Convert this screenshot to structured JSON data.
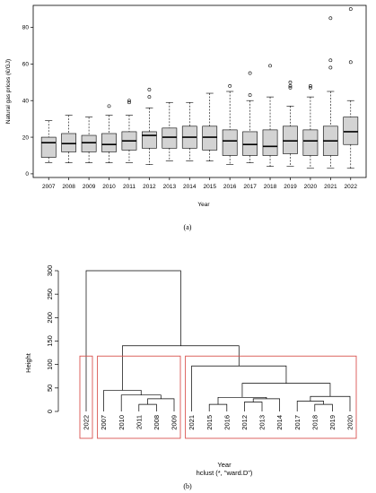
{
  "chart_data": [
    {
      "type": "boxplot",
      "panel_label": "(a)",
      "xlabel": "Year",
      "ylabel": "Natural gas prices (€/GJ)",
      "ylim": [
        -2,
        92
      ],
      "yticks": [
        0,
        20,
        40,
        60,
        80
      ],
      "grid": false,
      "categories": [
        "2007",
        "2008",
        "2009",
        "2010",
        "2011",
        "2012",
        "2013",
        "2014",
        "2015",
        "2016",
        "2017",
        "2018",
        "2019",
        "2020",
        "2021",
        "2022"
      ],
      "boxes": [
        {
          "year": "2007",
          "whisker_low": 6,
          "q1": 9,
          "median": 17,
          "q3": 20,
          "whisker_high": 29,
          "outliers": []
        },
        {
          "year": "2008",
          "whisker_low": 6,
          "q1": 12,
          "median": 16.5,
          "q3": 22,
          "whisker_high": 32,
          "outliers": []
        },
        {
          "year": "2009",
          "whisker_low": 6,
          "q1": 12,
          "median": 17,
          "q3": 21,
          "whisker_high": 31,
          "outliers": []
        },
        {
          "year": "2010",
          "whisker_low": 6,
          "q1": 12,
          "median": 16,
          "q3": 22,
          "whisker_high": 32,
          "outliers": [
            37
          ]
        },
        {
          "year": "2011",
          "whisker_low": 6,
          "q1": 13,
          "median": 18,
          "q3": 23,
          "whisker_high": 32,
          "outliers": [
            39,
            40
          ]
        },
        {
          "year": "2012",
          "whisker_low": 5,
          "q1": 14,
          "median": 21,
          "q3": 23,
          "whisker_high": 36,
          "outliers": [
            42,
            46
          ]
        },
        {
          "year": "2013",
          "whisker_low": 7,
          "q1": 14,
          "median": 20,
          "q3": 25,
          "whisker_high": 39,
          "outliers": []
        },
        {
          "year": "2014",
          "whisker_low": 7,
          "q1": 14,
          "median": 20,
          "q3": 26,
          "whisker_high": 39,
          "outliers": []
        },
        {
          "year": "2015",
          "whisker_low": 7,
          "q1": 13,
          "median": 20,
          "q3": 26,
          "whisker_high": 44,
          "outliers": []
        },
        {
          "year": "2016",
          "whisker_low": 5,
          "q1": 10,
          "median": 18,
          "q3": 24,
          "whisker_high": 45,
          "outliers": [
            48
          ]
        },
        {
          "year": "2017",
          "whisker_low": 6,
          "q1": 10,
          "median": 16,
          "q3": 23,
          "whisker_high": 40,
          "outliers": [
            43,
            55
          ]
        },
        {
          "year": "2018",
          "whisker_low": 4,
          "q1": 10,
          "median": 15,
          "q3": 24,
          "whisker_high": 42,
          "outliers": [
            59
          ]
        },
        {
          "year": "2019",
          "whisker_low": 4,
          "q1": 11,
          "median": 18,
          "q3": 26,
          "whisker_high": 37,
          "outliers": [
            47,
            48,
            50
          ]
        },
        {
          "year": "2020",
          "whisker_low": 3,
          "q1": 10,
          "median": 18,
          "q3": 24,
          "whisker_high": 42,
          "outliers": [
            47,
            48
          ]
        },
        {
          "year": "2021",
          "whisker_low": 3,
          "q1": 10,
          "median": 18,
          "q3": 26,
          "whisker_high": 45,
          "outliers": [
            58,
            62,
            85
          ]
        },
        {
          "year": "2022",
          "whisker_low": 3,
          "q1": 16,
          "median": 23,
          "q3": 31,
          "whisker_high": 40,
          "outliers": [
            61,
            90
          ]
        }
      ],
      "box_color": "#d3d3d3"
    },
    {
      "type": "dendrogram",
      "panel_label": "(b)",
      "ylabel": "Height",
      "xlabel": "Year",
      "subtitle": "hclust (*, \"ward.D\")",
      "ylim": [
        0,
        300
      ],
      "yticks": [
        0,
        50,
        100,
        150,
        200,
        250,
        300
      ],
      "leaf_order": [
        "2022",
        "2007",
        "2010",
        "2011",
        "2008",
        "2009",
        "2021",
        "2015",
        "2016",
        "2012",
        "2013",
        "2014",
        "2017",
        "2018",
        "2019",
        "2020"
      ],
      "merges": [
        {
          "a": "2011",
          "b": "2008",
          "height": 15
        },
        {
          "a": "[2011,2008]",
          "b": "2009",
          "height": 27
        },
        {
          "a": "2010",
          "b": "[2011,2008,2009]",
          "height": 35
        },
        {
          "a": "2007",
          "b": "[2010,2011,2008,2009]",
          "height": 45
        },
        {
          "a": "2012",
          "b": "2013",
          "height": 20
        },
        {
          "a": "2015",
          "b": "2016",
          "height": 15
        },
        {
          "a": "[2012,2013]",
          "b": "2014",
          "height": 27
        },
        {
          "a": "[2015,2016]",
          "b": "[2012,2013,2014]",
          "height": 30
        },
        {
          "a": "2018",
          "b": "2019",
          "height": 15
        },
        {
          "a": "2017",
          "b": "[2018,2019]",
          "height": 22
        },
        {
          "a": "[2017,2018,2019]",
          "b": "2020",
          "height": 32
        },
        {
          "a": "[2015..2014]",
          "b": "[2017..2020]",
          "height": 60
        },
        {
          "a": "2021",
          "b": "[2015..2020]",
          "height": 97
        },
        {
          "a": "[2007..2009]",
          "b": "[2021..2020]",
          "height": 140
        },
        {
          "a": "2022",
          "b": "[rest]",
          "height": 300
        }
      ],
      "clusters": [
        [
          "2022"
        ],
        [
          "2007",
          "2010",
          "2011",
          "2008",
          "2009"
        ],
        [
          "2021",
          "2015",
          "2016",
          "2012",
          "2013",
          "2014",
          "2017",
          "2018",
          "2019",
          "2020"
        ]
      ],
      "cluster_box_color": "#d9534f"
    }
  ]
}
